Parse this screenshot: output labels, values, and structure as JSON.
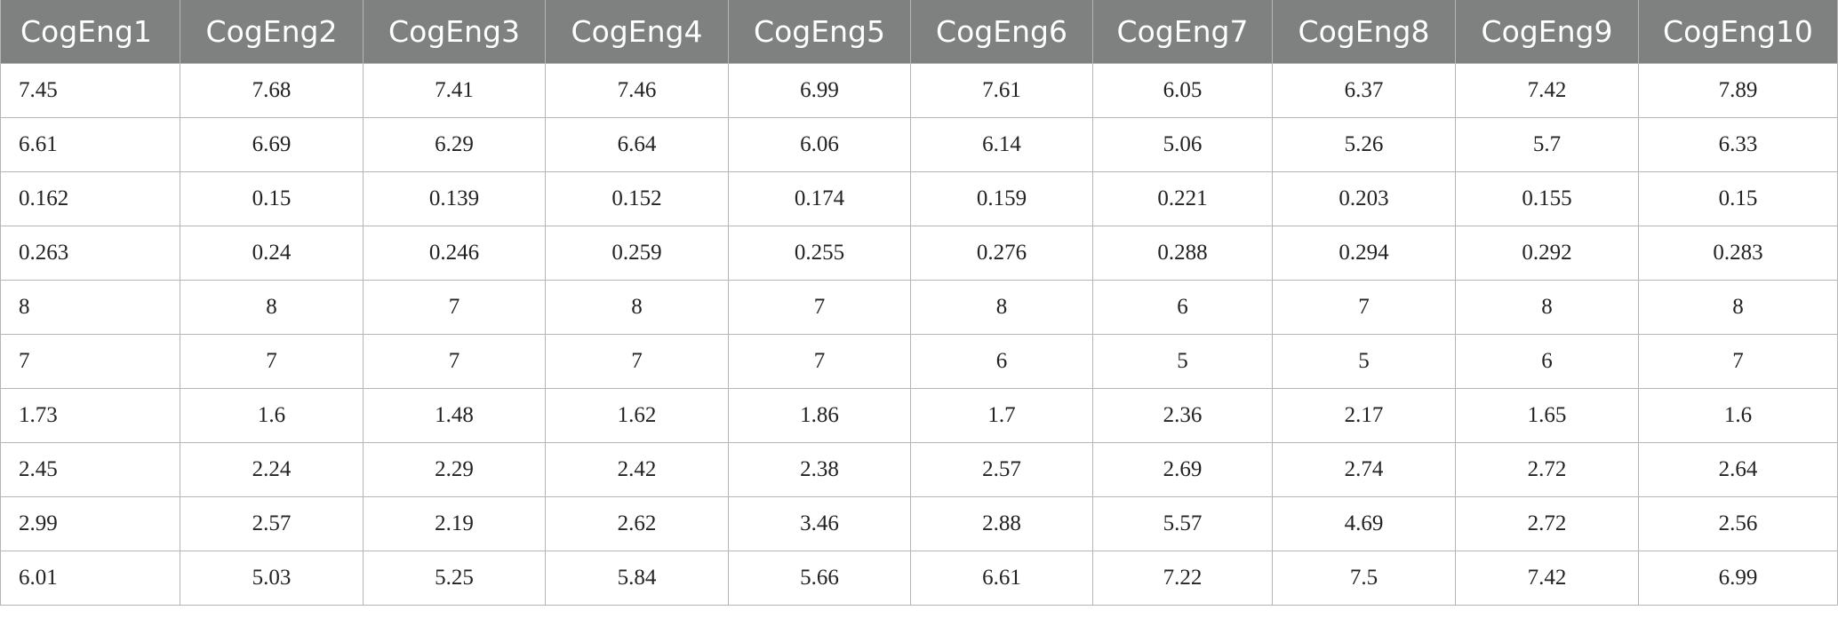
{
  "table": {
    "header": [
      "CogEng1",
      "CogEng2",
      "CogEng3",
      "CogEng4",
      "CogEng5",
      "CogEng6",
      "CogEng7",
      "CogEng8",
      "CogEng9",
      "CogEng10"
    ],
    "rows": [
      [
        7.45,
        7.68,
        7.41,
        7.46,
        6.99,
        7.61,
        6.05,
        6.37,
        7.42,
        7.89
      ],
      [
        6.61,
        6.69,
        6.29,
        6.64,
        6.06,
        6.14,
        5.06,
        5.26,
        5.7,
        6.33
      ],
      [
        0.162,
        0.15,
        0.139,
        0.152,
        0.174,
        0.159,
        0.221,
        0.203,
        0.155,
        0.15
      ],
      [
        0.263,
        0.24,
        0.246,
        0.259,
        0.255,
        0.276,
        0.288,
        0.294,
        0.292,
        0.283
      ],
      [
        8,
        8,
        7,
        8,
        7,
        8,
        6,
        7,
        8,
        8
      ],
      [
        7,
        7,
        7,
        7,
        7,
        6,
        5,
        5,
        6,
        7
      ],
      [
        1.73,
        1.6,
        1.48,
        1.62,
        1.86,
        1.7,
        2.36,
        2.17,
        1.65,
        1.6
      ],
      [
        2.45,
        2.24,
        2.29,
        2.42,
        2.38,
        2.57,
        2.69,
        2.74,
        2.72,
        2.64
      ],
      [
        2.99,
        2.57,
        2.19,
        2.62,
        3.46,
        2.88,
        5.57,
        4.69,
        2.72,
        2.56
      ],
      [
        6.01,
        5.03,
        5.25,
        5.84,
        5.66,
        6.61,
        7.22,
        7.5,
        7.42,
        6.99
      ]
    ]
  }
}
